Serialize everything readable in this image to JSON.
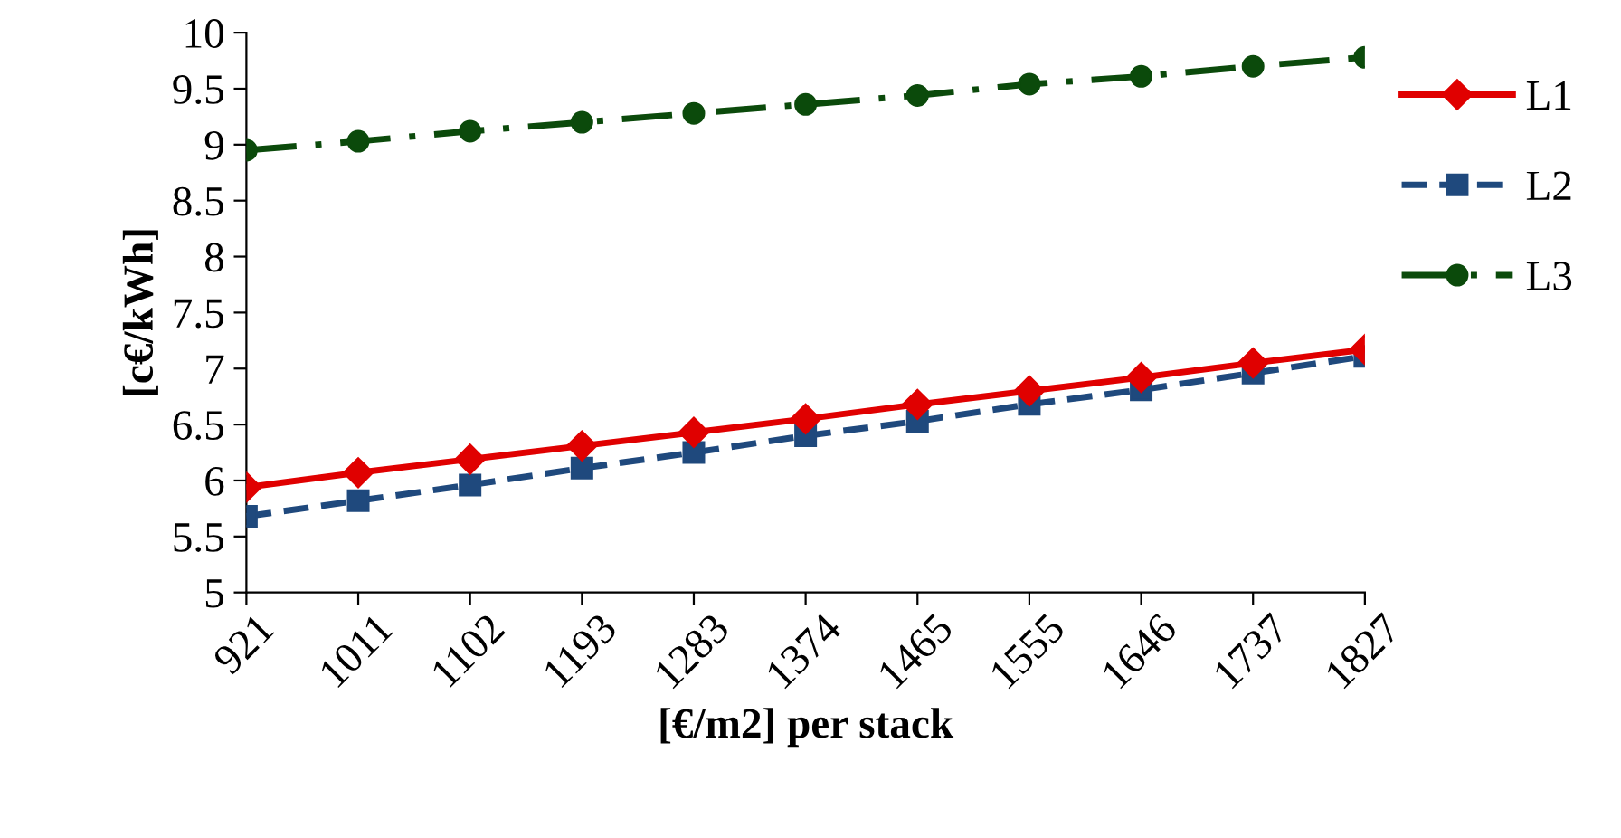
{
  "chart_data": {
    "type": "line",
    "xlabel": "[€/m2] per stack",
    "ylabel": "[c€/kWh]",
    "categories": [
      "921",
      "1011",
      "1102",
      "1193",
      "1283",
      "1374",
      "1465",
      "1555",
      "1646",
      "1737",
      "1827"
    ],
    "series": [
      {
        "name": "L1",
        "color": "#e00000",
        "marker": "diamond",
        "line_style": "solid",
        "values": [
          5.94,
          6.07,
          6.19,
          6.31,
          6.43,
          6.55,
          6.68,
          6.8,
          6.92,
          7.05,
          7.17
        ]
      },
      {
        "name": "L2",
        "color": "#1f497d",
        "marker": "square",
        "line_style": "dashed",
        "values": [
          5.68,
          5.82,
          5.96,
          6.11,
          6.25,
          6.4,
          6.53,
          6.68,
          6.81,
          6.96,
          7.11
        ]
      },
      {
        "name": "L3",
        "color": "#0b4a0b",
        "marker": "circle",
        "line_style": "dashdot",
        "values": [
          8.95,
          9.03,
          9.12,
          9.2,
          9.28,
          9.36,
          9.44,
          9.54,
          9.61,
          9.7,
          9.78
        ]
      }
    ],
    "ylim": [
      5,
      10
    ],
    "yticks": [
      5,
      5.5,
      6,
      6.5,
      7,
      7.5,
      8,
      8.5,
      9,
      9.5,
      10
    ],
    "grid": false,
    "legend": "right"
  }
}
